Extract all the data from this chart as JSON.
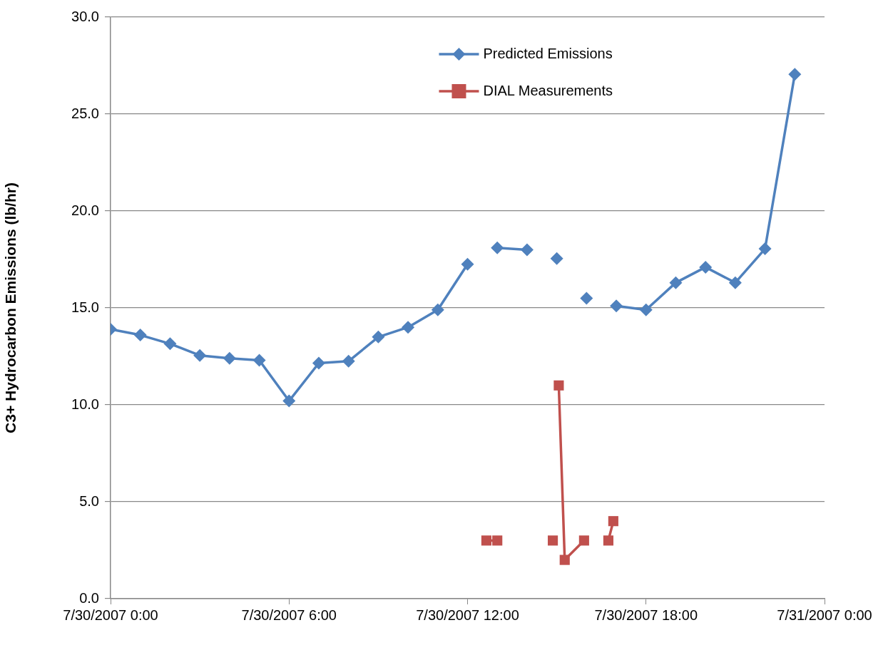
{
  "chart_data": {
    "type": "line",
    "ylabel": "C3+ Hydrocarbon Emissions (lb/hr)",
    "xlim": [
      "2007-07-30T00:00",
      "2007-07-31T00:00"
    ],
    "xticks": [
      {
        "value": "2007-07-30T00:00",
        "label": "7/30/2007 0:00"
      },
      {
        "value": "2007-07-30T06:00",
        "label": "7/30/2007 6:00"
      },
      {
        "value": "2007-07-30T12:00",
        "label": "7/30/2007 12:00"
      },
      {
        "value": "2007-07-30T18:00",
        "label": "7/30/2007 18:00"
      },
      {
        "value": "2007-07-31T00:00",
        "label": "7/31/2007 0:00"
      }
    ],
    "ylim": [
      0,
      30
    ],
    "yticks": [
      {
        "value": 0,
        "label": "0.0"
      },
      {
        "value": 5,
        "label": "5.0"
      },
      {
        "value": 10,
        "label": "10.0"
      },
      {
        "value": 15,
        "label": "15.0"
      },
      {
        "value": 20,
        "label": "20.0"
      },
      {
        "value": 25,
        "label": "25.0"
      },
      {
        "value": 30,
        "label": "30.0"
      }
    ],
    "grid": "y",
    "legend": "top right",
    "line_style": "solid",
    "series": [
      {
        "name": "Predicted Emissions",
        "color": "#4f81bd",
        "marker": "diamond",
        "x": [
          "2007-07-30T00:00",
          "2007-07-30T01:00",
          "2007-07-30T02:00",
          "2007-07-30T03:00",
          "2007-07-30T04:00",
          "2007-07-30T05:00",
          "2007-07-30T06:00",
          "2007-07-30T07:00",
          "2007-07-30T08:00",
          "2007-07-30T09:00",
          "2007-07-30T10:00",
          "2007-07-30T11:00",
          "2007-07-30T12:00",
          "2007-07-30T12:30",
          "2007-07-30T13:00",
          "2007-07-30T14:00",
          "2007-07-30T14:30",
          "2007-07-30T15:00",
          "2007-07-30T15:30",
          "2007-07-30T16:00",
          "2007-07-30T16:30",
          "2007-07-30T17:00",
          "2007-07-30T18:00",
          "2007-07-30T19:00",
          "2007-07-30T20:00",
          "2007-07-30T21:00",
          "2007-07-30T22:00",
          "2007-07-30T23:00"
        ],
        "values": [
          13.9,
          13.6,
          13.15,
          12.55,
          12.4,
          12.3,
          10.2,
          12.15,
          12.25,
          13.5,
          14.0,
          14.9,
          17.25,
          null,
          18.1,
          18.0,
          null,
          17.55,
          null,
          15.5,
          null,
          15.1,
          14.9,
          16.3,
          17.1,
          16.3,
          18.05,
          27.05
        ]
      },
      {
        "name": "DIAL Measurements",
        "color": "#c0504d",
        "marker": "square",
        "x": [
          "2007-07-30T12:38",
          "2007-07-30T13:00",
          "2007-07-30T13:30",
          "2007-07-30T14:52",
          "2007-07-30T14:57",
          "2007-07-30T15:04",
          "2007-07-30T15:16",
          "2007-07-30T15:55",
          "2007-07-30T16:20",
          "2007-07-30T16:44",
          "2007-07-30T16:54"
        ],
        "values": [
          3.0,
          3.0,
          null,
          3.0,
          null,
          11.0,
          2.0,
          3.0,
          null,
          3.0,
          4.0
        ]
      }
    ]
  }
}
